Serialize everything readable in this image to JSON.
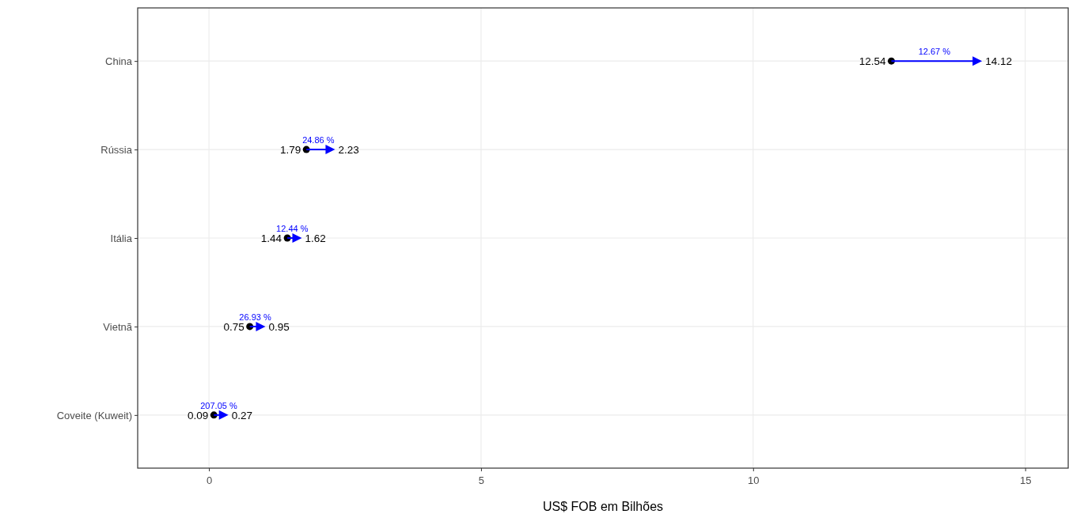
{
  "chart_data": {
    "type": "scatter",
    "orientation": "horizontal",
    "xlabel": "US$ FOB em Bilhões",
    "categories": [
      "China",
      "Rússia",
      "Itália",
      "Vietnã",
      "Coveite (Kuweit)"
    ],
    "series": [
      {
        "color": "#000000",
        "marker": "circle",
        "values": [
          12.54,
          1.79,
          1.44,
          0.75,
          0.09
        ]
      },
      {
        "color": "#0000ff",
        "marker": "triangle",
        "values": [
          14.12,
          2.23,
          1.62,
          0.95,
          0.27
        ]
      }
    ],
    "data_labels": true,
    "annotations": [
      "12.67 %",
      "24.86 %",
      "12.44 %",
      "26.93 %",
      "207.05 %"
    ],
    "xlim": [
      -1.31,
      15.79
    ],
    "xticks": [
      0,
      5,
      10,
      15
    ],
    "grid": true
  }
}
